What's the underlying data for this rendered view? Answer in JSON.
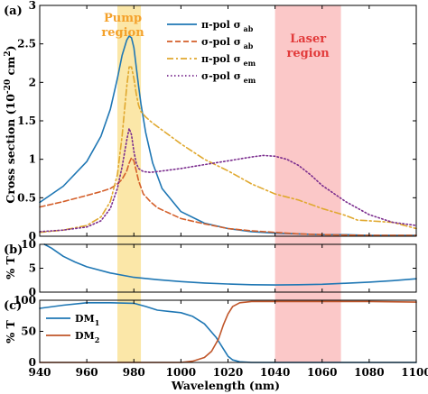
{
  "figure": {
    "xlabel": "Wavelength (nm)",
    "shaded_regions": [
      {
        "label_lines": [
          "Pump",
          "region"
        ],
        "x_range": [
          973,
          983
        ],
        "color": "#fbe7a8",
        "text_color": "#f4a12a"
      },
      {
        "label_lines": [
          "Laser",
          "region"
        ],
        "x_range": [
          1040,
          1068
        ],
        "color": "#fbc8c8",
        "text_color": "#e23b3b"
      }
    ]
  },
  "chart_data": [
    {
      "panel": "(a)",
      "type": "line",
      "ylabel": "Cross section (10^-20 cm^2)",
      "xlim": [
        940,
        1100
      ],
      "ylim": [
        0,
        3
      ],
      "xticks": [
        940,
        960,
        980,
        1000,
        1020,
        1040,
        1060,
        1080,
        1100
      ],
      "yticks": [
        0,
        0.5,
        1,
        1.5,
        2,
        2.5,
        3
      ],
      "ytick_labels": [
        "0",
        "0.5",
        "1",
        "1.5",
        "2",
        "2.5",
        "3"
      ],
      "legend_position": "top-right",
      "series": [
        {
          "name": "π-pol σ_ab",
          "color": "#1f77b4",
          "dash": "solid",
          "x": [
            940,
            950,
            960,
            966,
            970,
            973,
            975,
            977,
            978,
            979,
            980,
            981,
            982,
            983,
            985,
            988,
            992,
            1000,
            1010,
            1020,
            1030,
            1040,
            1050,
            1060,
            1070,
            1080,
            1090,
            1100
          ],
          "y": [
            0.44,
            0.65,
            0.97,
            1.3,
            1.65,
            2.05,
            2.35,
            2.55,
            2.6,
            2.58,
            2.45,
            2.2,
            1.95,
            1.72,
            1.35,
            0.95,
            0.62,
            0.32,
            0.17,
            0.1,
            0.06,
            0.04,
            0.03,
            0.02,
            0.02,
            0.01,
            0.01,
            0.01
          ]
        },
        {
          "name": "σ-pol σ_ab",
          "color": "#d45f2a",
          "dash": "dashed",
          "x": [
            940,
            950,
            960,
            966,
            970,
            973,
            975,
            977,
            978,
            979,
            980,
            981,
            982,
            984,
            987,
            990,
            995,
            1000,
            1010,
            1020,
            1030,
            1040,
            1050,
            1060,
            1080,
            1100
          ],
          "y": [
            0.38,
            0.45,
            0.53,
            0.58,
            0.62,
            0.68,
            0.74,
            0.85,
            0.95,
            1.02,
            0.98,
            0.85,
            0.72,
            0.55,
            0.45,
            0.37,
            0.3,
            0.23,
            0.16,
            0.1,
            0.07,
            0.05,
            0.03,
            0.02,
            0.01,
            0.01
          ]
        },
        {
          "name": "π-pol σ_em",
          "color": "#e0a82e",
          "dash": "dashdot",
          "x": [
            940,
            950,
            960,
            966,
            970,
            973,
            975,
            977,
            978,
            979,
            980,
            981,
            982,
            983,
            985,
            988,
            992,
            1000,
            1010,
            1020,
            1030,
            1040,
            1050,
            1060,
            1070,
            1075,
            1080,
            1090,
            1100
          ],
          "y": [
            0.05,
            0.08,
            0.14,
            0.25,
            0.45,
            0.8,
            1.3,
            1.95,
            2.2,
            2.2,
            2.05,
            1.85,
            1.7,
            1.62,
            1.55,
            1.47,
            1.38,
            1.2,
            1.0,
            0.85,
            0.68,
            0.55,
            0.47,
            0.36,
            0.27,
            0.21,
            0.2,
            0.18,
            0.1
          ]
        },
        {
          "name": "σ-pol σ_em",
          "color": "#7b2d8e",
          "dash": "dotted",
          "x": [
            940,
            950,
            960,
            966,
            970,
            973,
            975,
            977,
            978,
            979,
            980,
            981,
            982,
            984,
            987,
            990,
            1000,
            1010,
            1020,
            1030,
            1035,
            1040,
            1045,
            1050,
            1055,
            1060,
            1070,
            1080,
            1090,
            1100
          ],
          "y": [
            0.06,
            0.08,
            0.12,
            0.2,
            0.36,
            0.62,
            0.9,
            1.25,
            1.4,
            1.32,
            1.1,
            0.95,
            0.88,
            0.84,
            0.83,
            0.84,
            0.88,
            0.93,
            0.98,
            1.03,
            1.05,
            1.04,
            1.0,
            0.92,
            0.8,
            0.66,
            0.45,
            0.28,
            0.18,
            0.14
          ]
        }
      ]
    },
    {
      "panel": "(b)",
      "type": "line",
      "ylabel": "% T",
      "xlim": [
        940,
        1100
      ],
      "ylim": [
        0,
        10
      ],
      "yticks": [
        0,
        5,
        10
      ],
      "ytick_labels": [
        "0",
        "5",
        "10"
      ],
      "series": [
        {
          "color": "#1f77b4",
          "dash": "solid",
          "x": [
            942,
            945,
            950,
            955,
            960,
            970,
            980,
            990,
            1000,
            1010,
            1020,
            1030,
            1040,
            1050,
            1060,
            1070,
            1080,
            1090,
            1100
          ],
          "y": [
            10,
            9.2,
            7.5,
            6.3,
            5.3,
            4.0,
            3.1,
            2.6,
            2.2,
            1.9,
            1.7,
            1.55,
            1.5,
            1.55,
            1.65,
            1.85,
            2.1,
            2.4,
            2.8
          ]
        }
      ]
    },
    {
      "panel": "(c)",
      "type": "line",
      "ylabel": "% T",
      "xlim": [
        940,
        1100
      ],
      "ylim": [
        0,
        100
      ],
      "xticks": [
        940,
        960,
        980,
        1000,
        1020,
        1040,
        1060,
        1080,
        1100
      ],
      "yticks": [
        0,
        50,
        100
      ],
      "ytick_labels": [
        "0",
        "50",
        "100"
      ],
      "legend_position": "left",
      "series": [
        {
          "name": "DM1",
          "color": "#1f77b4",
          "dash": "solid",
          "x": [
            940,
            950,
            960,
            970,
            980,
            985,
            990,
            995,
            1000,
            1005,
            1010,
            1015,
            1018,
            1020,
            1022,
            1025,
            1030,
            1040,
            1060,
            1080,
            1100
          ],
          "y": [
            87,
            92,
            96,
            96,
            95,
            90,
            84,
            82,
            80,
            74,
            62,
            40,
            22,
            10,
            4,
            1,
            0,
            0,
            0,
            0,
            0
          ]
        },
        {
          "name": "DM2",
          "color": "#c0562a",
          "dash": "solid",
          "x": [
            940,
            960,
            980,
            1000,
            1005,
            1010,
            1013,
            1016,
            1018,
            1020,
            1022,
            1025,
            1030,
            1040,
            1060,
            1080,
            1100
          ],
          "y": [
            0,
            0,
            0,
            0,
            2,
            8,
            18,
            38,
            60,
            78,
            90,
            96,
            98,
            98,
            98,
            98,
            97
          ]
        }
      ]
    }
  ]
}
